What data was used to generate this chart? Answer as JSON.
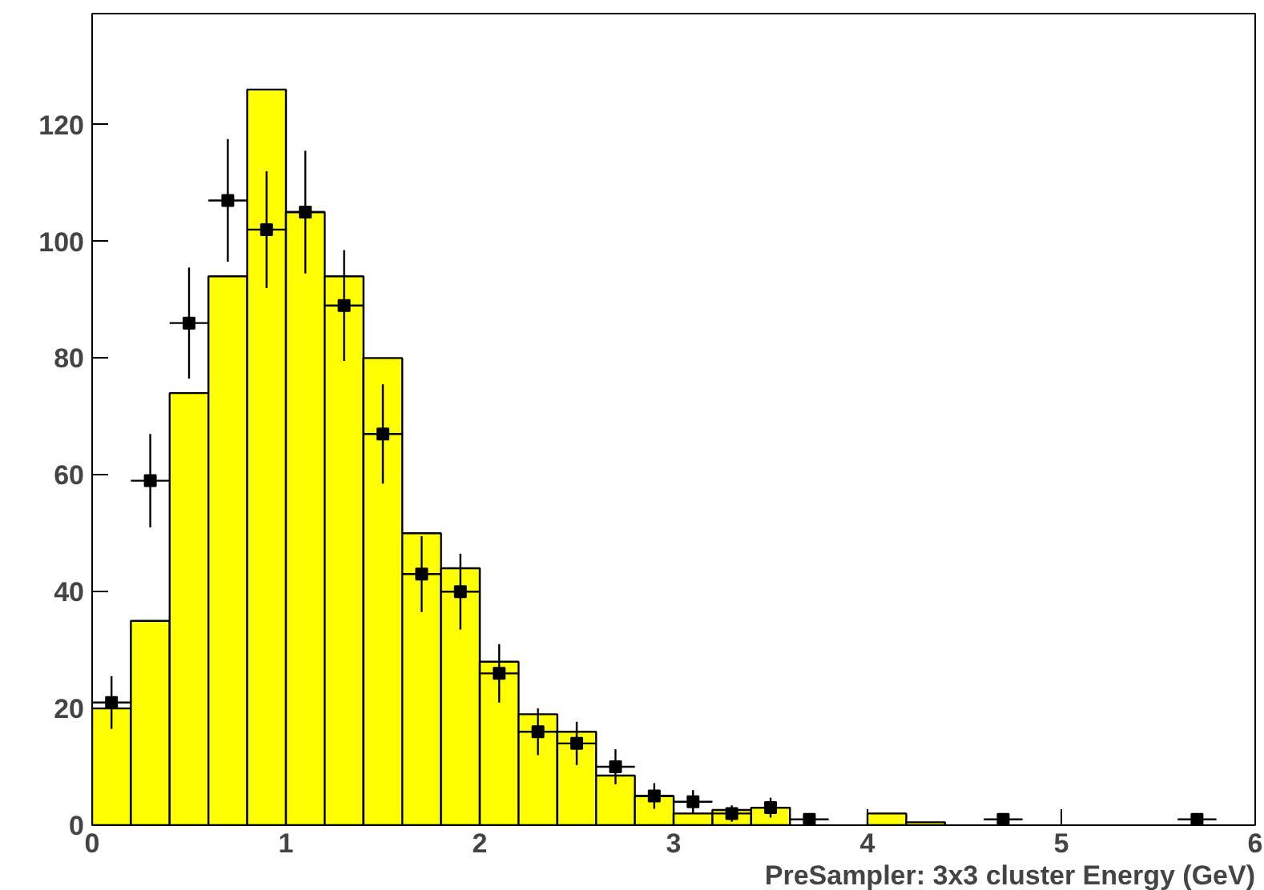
{
  "chart_data": {
    "type": "histogram",
    "xlabel": "PreSampler: 3x3 cluster Energy (GeV)",
    "bins": [
      0,
      0.2,
      0.4,
      0.6,
      0.8,
      1.0,
      1.2,
      1.4,
      1.6,
      1.8,
      2.0,
      2.2,
      2.4,
      2.6,
      2.8,
      3.0,
      3.2,
      3.4,
      3.6,
      3.8,
      4.0,
      4.2,
      4.4,
      4.6,
      4.8,
      5.0,
      5.2,
      5.4,
      5.6,
      5.8,
      6.0
    ],
    "values": [
      20,
      35,
      74,
      94,
      126,
      105,
      94,
      80,
      50,
      44,
      28,
      19,
      16,
      8.5,
      5,
      2,
      2.6,
      3,
      0,
      0,
      2,
      0.5,
      0,
      0,
      0,
      0,
      0,
      0,
      0,
      0
    ],
    "color": "#ffff00",
    "series": [
      {
        "type": "scatter",
        "color": "#000000",
        "marker": "square",
        "x": [
          0.1,
          0.3,
          0.5,
          0.7,
          0.9,
          1.1,
          1.3,
          1.5,
          1.7,
          1.9,
          2.1,
          2.3,
          2.5,
          2.7,
          2.9,
          3.1,
          3.3,
          3.5,
          3.7,
          4.7,
          5.7
        ],
        "values": [
          21,
          59,
          86,
          107,
          102,
          105,
          89,
          67,
          43,
          40,
          26,
          16,
          14,
          10,
          5,
          4,
          2,
          3,
          1,
          1,
          1
        ],
        "errors": [
          4.5,
          8,
          9.5,
          10.5,
          10,
          10.5,
          9.5,
          8.5,
          6.5,
          6.5,
          5,
          4,
          3.7,
          3,
          2.2,
          2,
          1.4,
          1.7,
          1,
          1,
          1
        ],
        "xerrors": [
          0.1,
          0.1,
          0.1,
          0.1,
          0.1,
          0.1,
          0.1,
          0.1,
          0.1,
          0.1,
          0.1,
          0.1,
          0.1,
          0.1,
          0.1,
          0.1,
          0.1,
          0.1,
          0.1,
          0.1,
          0.1
        ]
      }
    ],
    "xlim": [
      0,
      6
    ],
    "ylim": [
      0,
      139
    ],
    "xticks": [
      0,
      1,
      2,
      3,
      4,
      5,
      6
    ],
    "yticks": [
      0,
      20,
      40,
      60,
      80,
      100,
      120
    ],
    "grid": false
  }
}
